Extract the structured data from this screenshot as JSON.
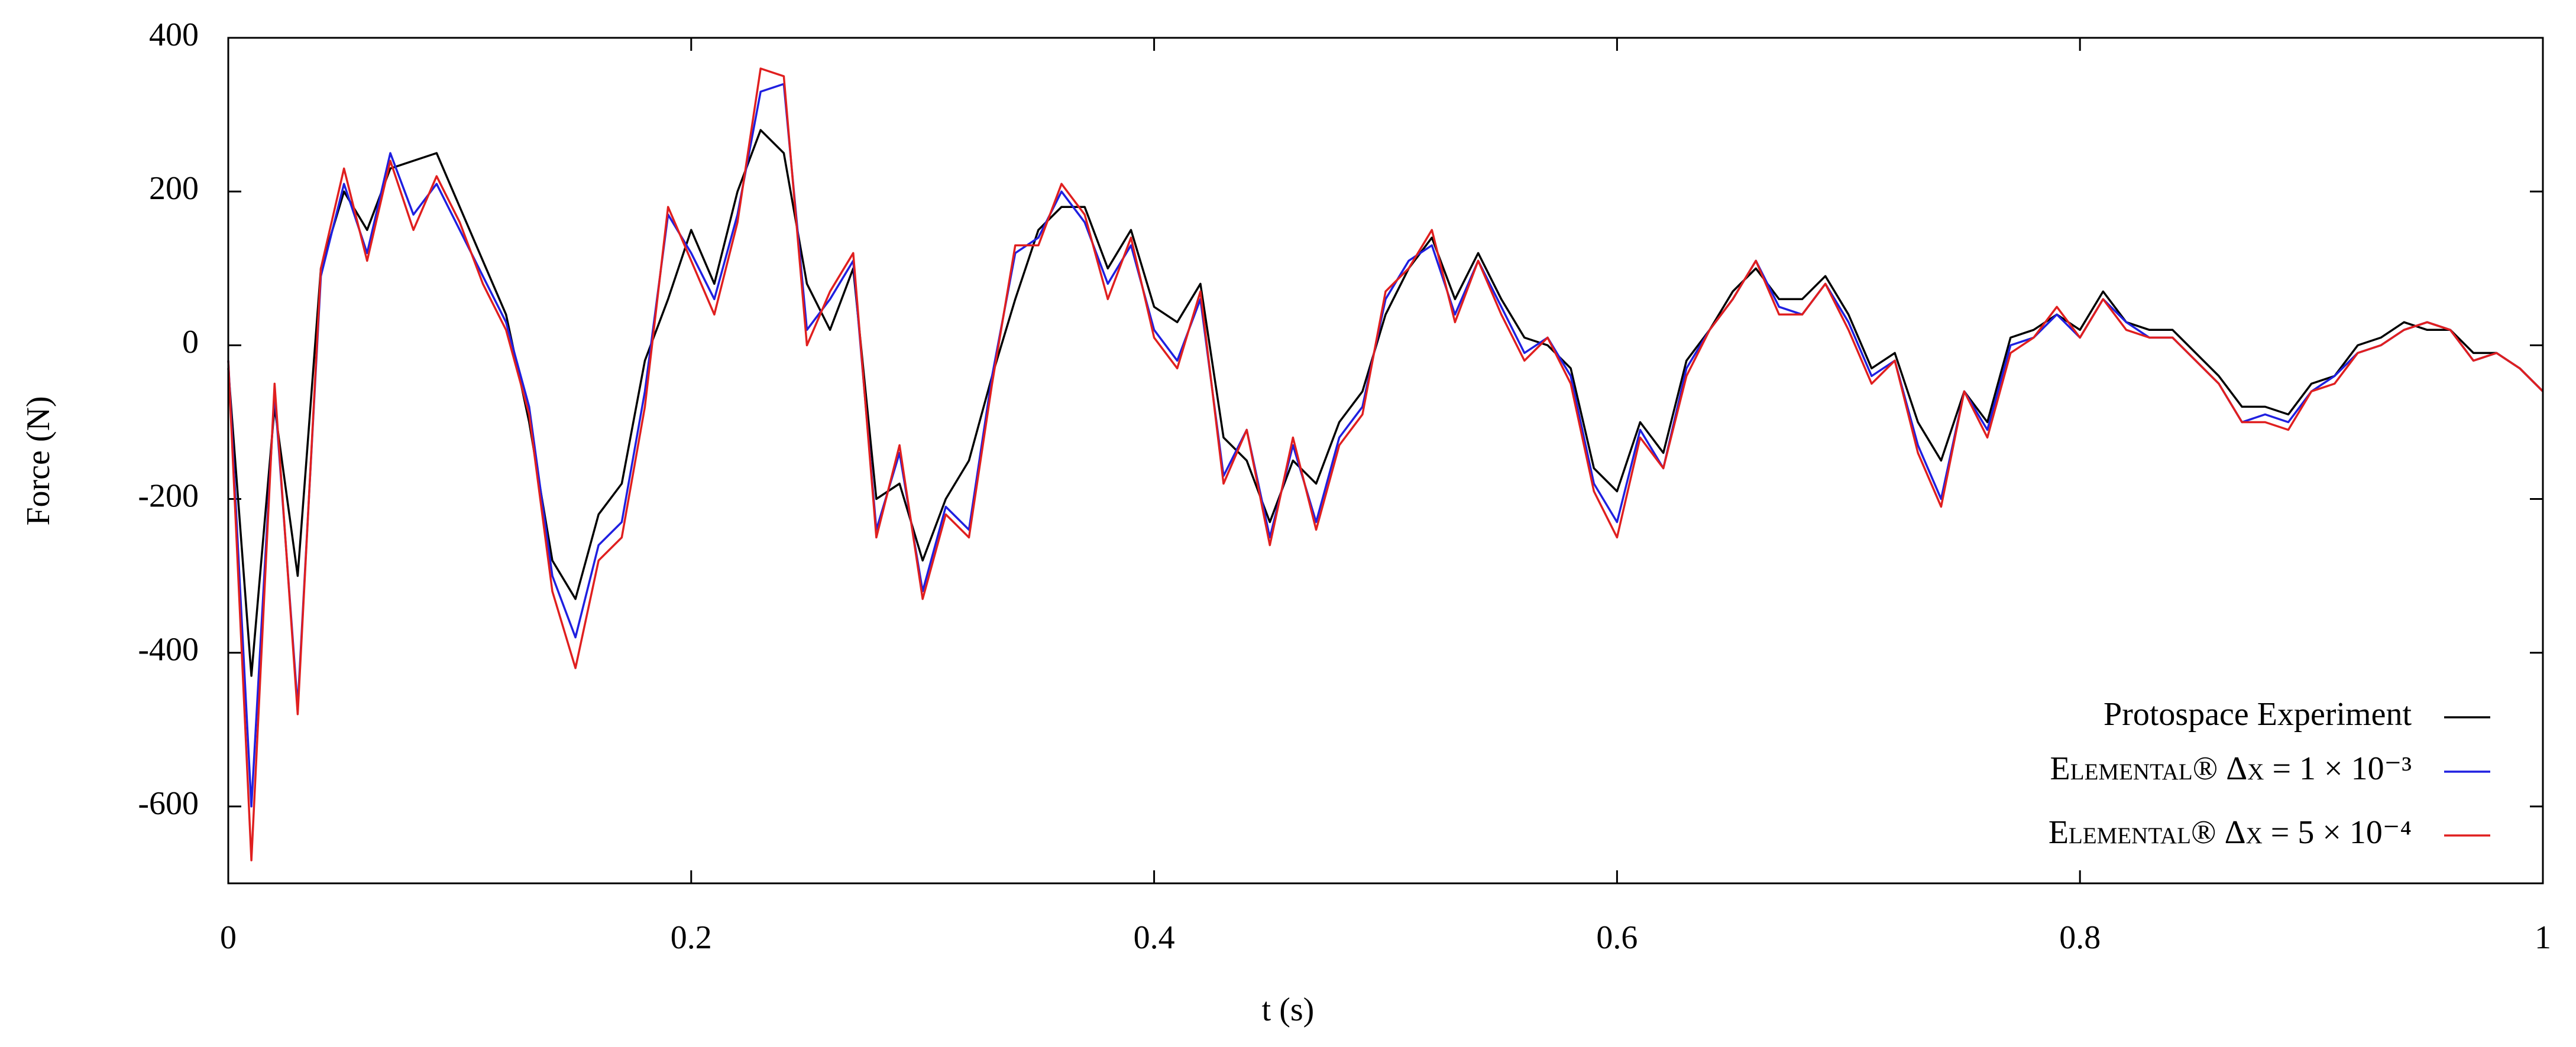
{
  "chart_data": {
    "type": "line",
    "x_label": "t (s)",
    "y_label": "Force (N)",
    "xlim": [
      0,
      1
    ],
    "ylim": [
      -700,
      400
    ],
    "xticks": [
      0,
      0.2,
      0.4,
      0.6,
      0.8,
      1
    ],
    "yticks": [
      -600,
      -400,
      -200,
      0,
      200,
      400
    ],
    "legend": "lower right",
    "x": [
      0,
      0.01,
      0.02,
      0.03,
      0.04,
      0.05,
      0.06,
      0.07,
      0.08,
      0.09,
      0.1,
      0.11,
      0.12,
      0.13,
      0.14,
      0.15,
      0.16,
      0.17,
      0.18,
      0.19,
      0.2,
      0.21,
      0.22,
      0.23,
      0.24,
      0.25,
      0.26,
      0.27,
      0.28,
      0.29,
      0.3,
      0.31,
      0.32,
      0.33,
      0.34,
      0.35,
      0.36,
      0.37,
      0.38,
      0.39,
      0.4,
      0.41,
      0.42,
      0.43,
      0.44,
      0.45,
      0.46,
      0.47,
      0.48,
      0.49,
      0.5,
      0.51,
      0.52,
      0.53,
      0.54,
      0.55,
      0.56,
      0.57,
      0.58,
      0.59,
      0.6,
      0.61,
      0.62,
      0.63,
      0.64,
      0.65,
      0.66,
      0.67,
      0.68,
      0.69,
      0.7,
      0.71,
      0.72,
      0.73,
      0.74,
      0.75,
      0.76,
      0.77,
      0.78,
      0.79,
      0.8,
      0.81,
      0.82,
      0.83,
      0.84,
      0.85,
      0.86,
      0.87,
      0.88,
      0.89,
      0.9,
      0.91,
      0.92,
      0.93,
      0.94,
      0.95,
      0.96,
      0.97,
      0.98,
      0.99,
      1
    ],
    "series": [
      {
        "name": "Protospace Experiment",
        "color": "#000000",
        "values": [
          -30,
          -430,
          -80,
          -300,
          100,
          200,
          150,
          230,
          240,
          250,
          180,
          110,
          40,
          -100,
          -280,
          -330,
          -220,
          -180,
          -20,
          60,
          150,
          80,
          200,
          280,
          250,
          80,
          20,
          100,
          -200,
          -180,
          -280,
          -200,
          -150,
          -40,
          60,
          150,
          180,
          180,
          100,
          150,
          50,
          30,
          80,
          -120,
          -150,
          -230,
          -150,
          -180,
          -100,
          -60,
          40,
          100,
          140,
          60,
          120,
          60,
          10,
          0,
          -30,
          -160,
          -190,
          -100,
          -140,
          -20,
          20,
          70,
          100,
          60,
          60,
          90,
          40,
          -30,
          -10,
          -100,
          -150,
          -60,
          -100,
          10,
          20,
          40,
          20,
          70,
          30,
          20,
          20,
          -10,
          -40,
          -80,
          -80,
          -90,
          -50,
          -40,
          0,
          10,
          30,
          20,
          20,
          -10,
          -10,
          -30,
          -60
        ]
      },
      {
        "name": "Elemental® Δx = 1 × 10⁻³",
        "color": "#1f1fe0",
        "values": [
          -20,
          -600,
          -60,
          -470,
          90,
          210,
          120,
          250,
          170,
          210,
          150,
          90,
          30,
          -80,
          -300,
          -380,
          -260,
          -230,
          -60,
          170,
          120,
          60,
          170,
          330,
          340,
          20,
          60,
          110,
          -240,
          -140,
          -320,
          -210,
          -240,
          -40,
          120,
          140,
          200,
          160,
          80,
          130,
          20,
          -20,
          60,
          -170,
          -110,
          -250,
          -130,
          -230,
          -120,
          -80,
          60,
          110,
          130,
          40,
          110,
          50,
          -10,
          10,
          -40,
          -180,
          -230,
          -110,
          -160,
          -30,
          20,
          60,
          110,
          50,
          40,
          80,
          30,
          -40,
          -20,
          -130,
          -200,
          -60,
          -110,
          0,
          10,
          40,
          10,
          60,
          30,
          10,
          10,
          -20,
          -50,
          -100,
          -90,
          -100,
          -60,
          -40,
          -10,
          0,
          20,
          30,
          20,
          -20,
          -10,
          -30,
          -60
        ]
      },
      {
        "name": "Elemental® Δx = 5 × 10⁻⁴",
        "color": "#e01f1f",
        "values": [
          -20,
          -670,
          -50,
          -480,
          100,
          230,
          110,
          240,
          150,
          220,
          160,
          80,
          20,
          -90,
          -320,
          -420,
          -280,
          -250,
          -80,
          180,
          110,
          40,
          160,
          360,
          350,
          0,
          70,
          120,
          -250,
          -130,
          -330,
          -220,
          -250,
          -50,
          130,
          130,
          210,
          170,
          60,
          140,
          10,
          -30,
          70,
          -180,
          -110,
          -260,
          -120,
          -240,
          -130,
          -90,
          70,
          100,
          150,
          30,
          110,
          40,
          -20,
          10,
          -50,
          -190,
          -250,
          -120,
          -160,
          -40,
          20,
          60,
          110,
          40,
          40,
          80,
          20,
          -50,
          -20,
          -140,
          -210,
          -60,
          -120,
          -10,
          10,
          50,
          10,
          60,
          20,
          10,
          10,
          -20,
          -50,
          -100,
          -100,
          -110,
          -60,
          -50,
          -10,
          0,
          20,
          30,
          20,
          -20,
          -10,
          -30,
          -60
        ]
      }
    ]
  }
}
